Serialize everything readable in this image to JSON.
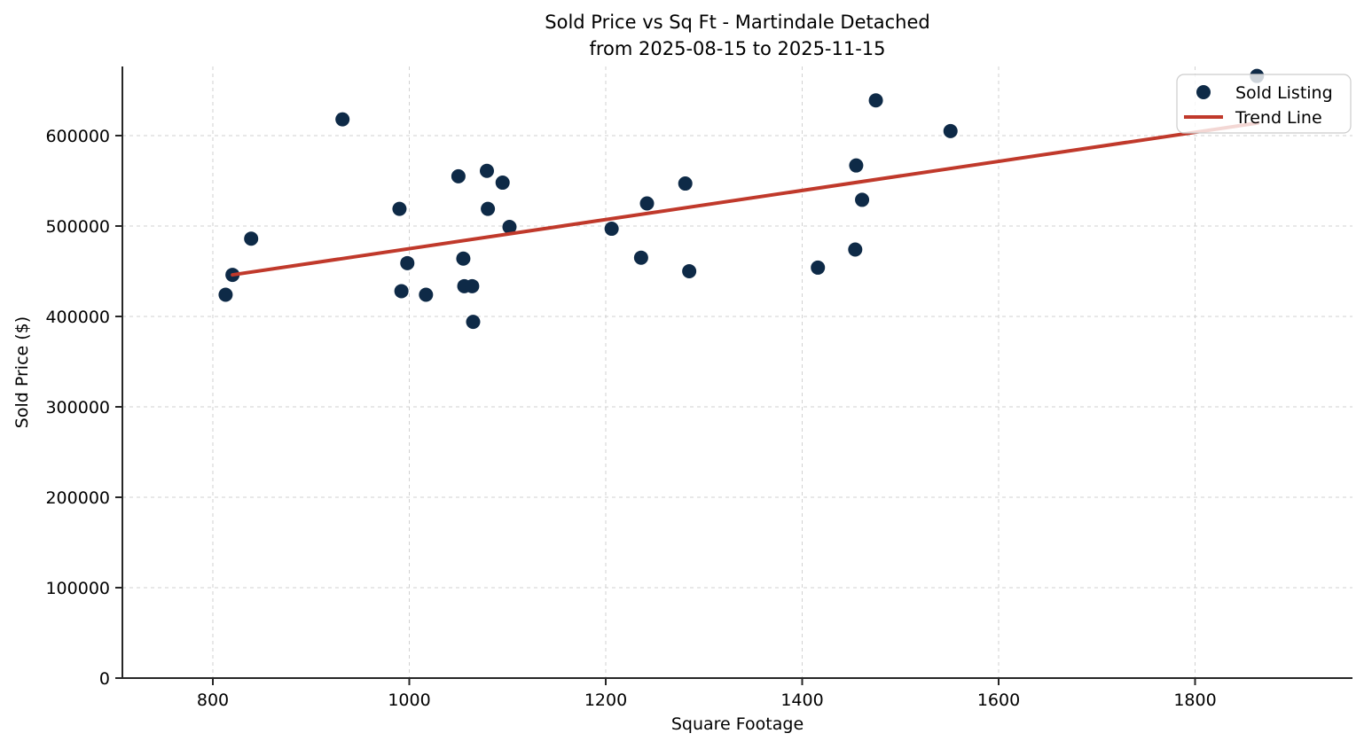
{
  "chart_data": {
    "type": "scatter",
    "title": "Sold Price vs Sq Ft - Martindale Detached",
    "subtitle": "from 2025-08-15 to 2025-11-15",
    "xlabel": "Square Footage",
    "ylabel": "Sold Price ($)",
    "xlim": [
      708,
      1960
    ],
    "ylim": [
      0,
      676000
    ],
    "x_ticks": [
      800,
      1000,
      1200,
      1400,
      1600,
      1800
    ],
    "y_ticks": [
      0,
      100000,
      200000,
      300000,
      400000,
      500000,
      600000
    ],
    "grid": true,
    "legend_position": "upper right",
    "series": [
      {
        "name": "Sold Listing",
        "kind": "scatter",
        "color": "#0e2a47",
        "points": [
          [
            813,
            424000
          ],
          [
            820,
            446000
          ],
          [
            839,
            486000
          ],
          [
            932,
            618000
          ],
          [
            990,
            519000
          ],
          [
            992,
            428000
          ],
          [
            998,
            459000
          ],
          [
            1017,
            424000
          ],
          [
            1050,
            555000
          ],
          [
            1055,
            464000
          ],
          [
            1056,
            433500
          ],
          [
            1064,
            433500
          ],
          [
            1065,
            394000
          ],
          [
            1079,
            561000
          ],
          [
            1080,
            519000
          ],
          [
            1095,
            548000
          ],
          [
            1102,
            499000
          ],
          [
            1206,
            497000
          ],
          [
            1236,
            465000
          ],
          [
            1242,
            525000
          ],
          [
            1281,
            547000
          ],
          [
            1285,
            450000
          ],
          [
            1416,
            454000
          ],
          [
            1454,
            474000
          ],
          [
            1455,
            567000
          ],
          [
            1461,
            529000
          ],
          [
            1475,
            639000
          ],
          [
            1551,
            605000
          ],
          [
            1863,
            666000
          ]
        ]
      },
      {
        "name": "Trend Line",
        "kind": "line",
        "color": "#c0392b",
        "points": [
          [
            820,
            446000
          ],
          [
            1864,
            614000
          ]
        ]
      }
    ],
    "legend": {
      "entries": [
        {
          "label": "Sold Listing",
          "marker": "dot",
          "color": "#0e2a47"
        },
        {
          "label": "Trend Line",
          "marker": "line",
          "color": "#c0392b"
        }
      ]
    }
  },
  "colors": {
    "scatter": "#0e2a47",
    "trend": "#c0392b",
    "gridline": "#cdcdcd",
    "spine": "#262626",
    "background": "#ffffff",
    "legend_border": "#cccccc"
  }
}
